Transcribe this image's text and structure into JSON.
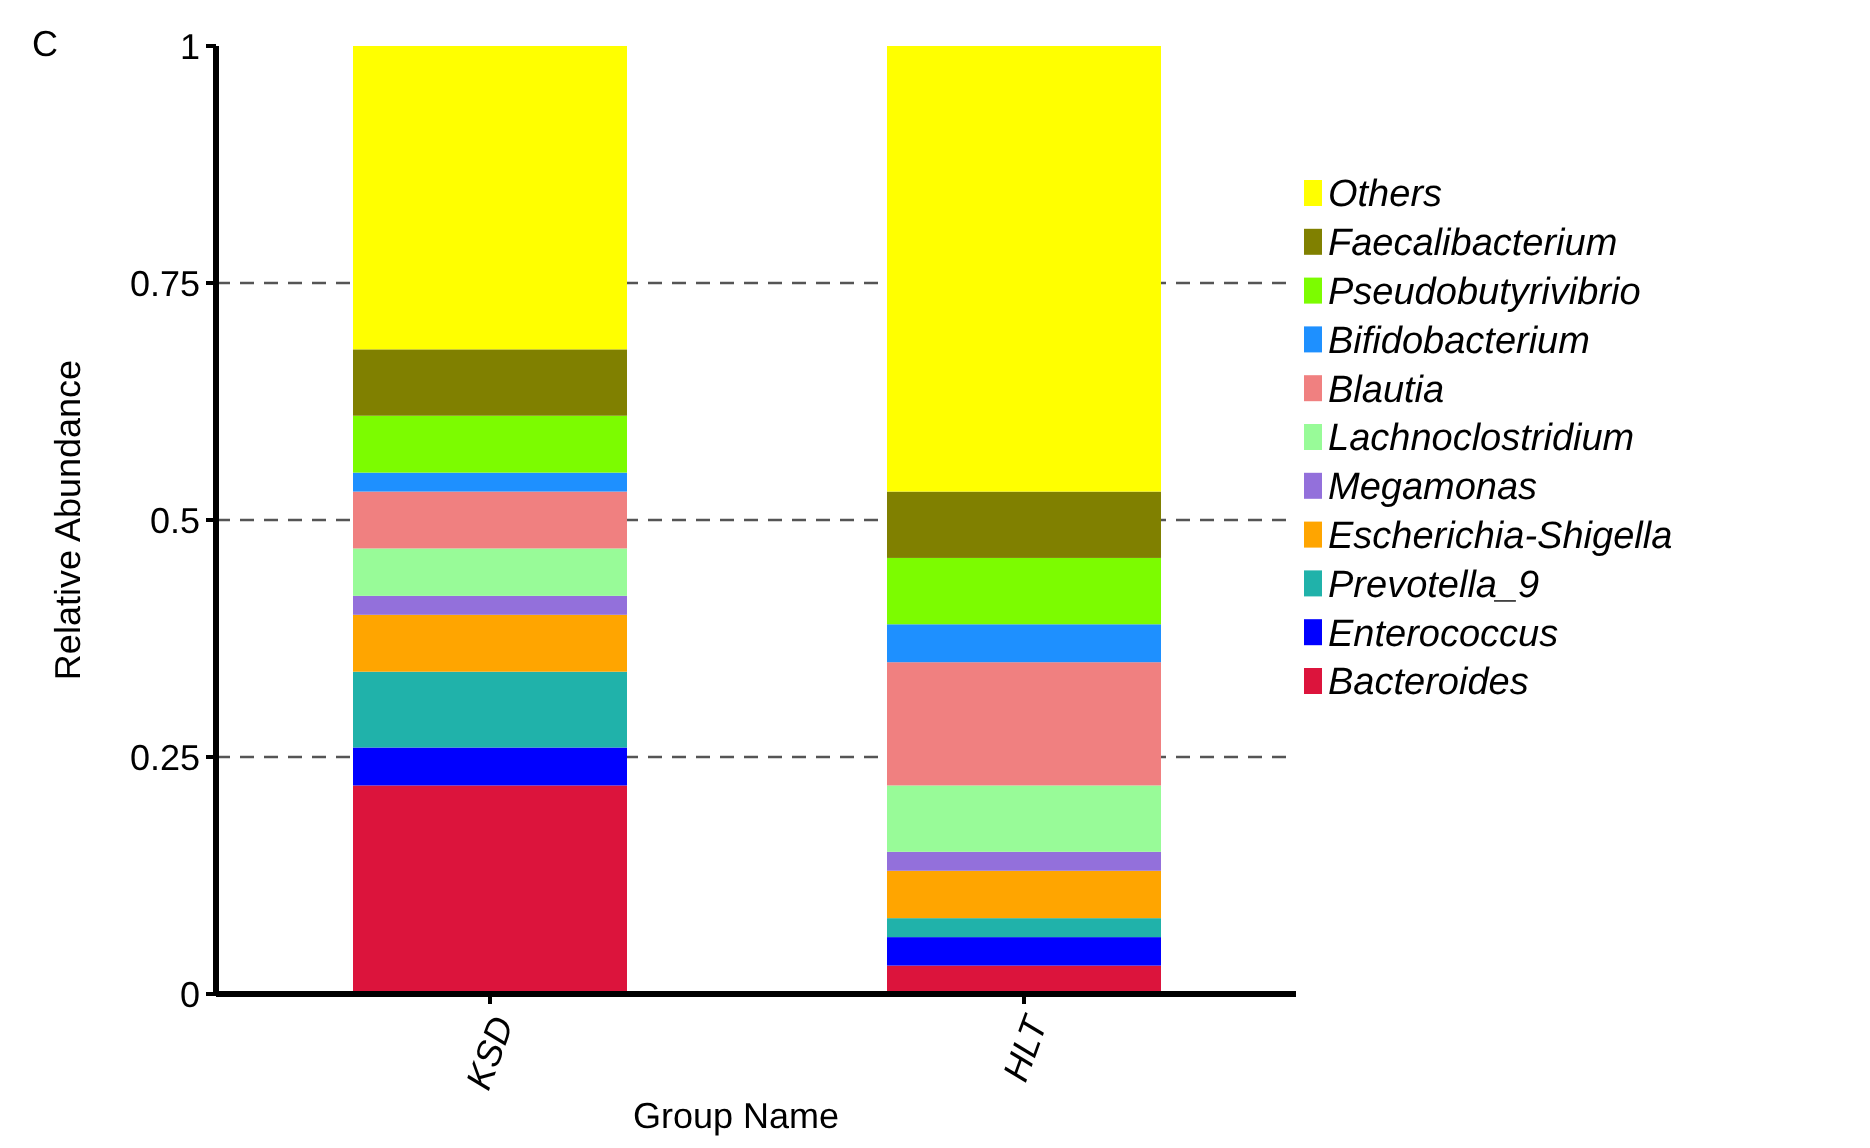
{
  "chart_data": {
    "type": "bar",
    "stacked": true,
    "title": "C",
    "xlabel": "Group Name",
    "ylabel": "Relative Abundance",
    "categories": [
      "KSD",
      "HLT"
    ],
    "series": [
      {
        "name": "Bacteroides",
        "color": "#dc143c",
        "values": [
          0.22,
          0.03
        ]
      },
      {
        "name": "Enterococcus",
        "color": "#0000ff",
        "values": [
          0.04,
          0.03
        ]
      },
      {
        "name": "Prevotella_9",
        "color": "#20b2aa",
        "values": [
          0.08,
          0.02
        ]
      },
      {
        "name": "Escherichia-Shigella",
        "color": "#ffa500",
        "values": [
          0.06,
          0.05
        ]
      },
      {
        "name": "Megamonas",
        "color": "#9370db",
        "values": [
          0.02,
          0.02
        ]
      },
      {
        "name": "Lachnoclostridium",
        "color": "#98fb98",
        "values": [
          0.05,
          0.07
        ]
      },
      {
        "name": "Blautia",
        "color": "#f08080",
        "values": [
          0.06,
          0.13
        ]
      },
      {
        "name": "Bifidobacterium",
        "color": "#1e90ff",
        "values": [
          0.02,
          0.04
        ]
      },
      {
        "name": "Pseudobutyrivibrio",
        "color": "#7cfc00",
        "values": [
          0.06,
          0.07
        ]
      },
      {
        "name": "Faecalibacterium",
        "color": "#808000",
        "values": [
          0.07,
          0.07
        ]
      },
      {
        "name": "Others",
        "color": "#ffff00",
        "values": [
          0.32,
          0.47
        ]
      }
    ],
    "ylim": [
      0,
      1
    ],
    "yticks": [
      0,
      0.25,
      0.5,
      0.75,
      1
    ],
    "grid": "y",
    "legend": "right"
  }
}
